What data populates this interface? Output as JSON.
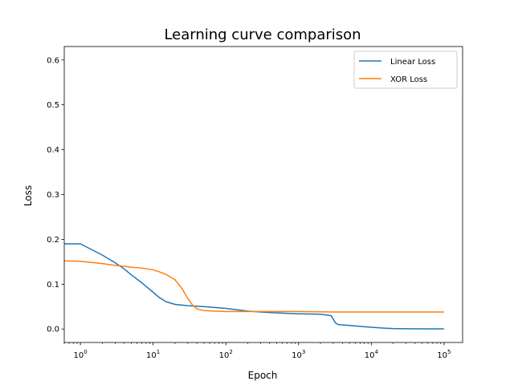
{
  "chart_data": {
    "type": "line",
    "title": "Learning curve comparison",
    "xlabel": "Epoch",
    "ylabel": "Loss",
    "xscale": "log",
    "xlim": [
      0.6,
      180000
    ],
    "ylim": [
      -0.03,
      0.63
    ],
    "xticks": [
      {
        "value": 1,
        "base": "10",
        "exp": "0"
      },
      {
        "value": 10,
        "base": "10",
        "exp": "1"
      },
      {
        "value": 100,
        "base": "10",
        "exp": "2"
      },
      {
        "value": 1000,
        "base": "10",
        "exp": "3"
      },
      {
        "value": 10000,
        "base": "10",
        "exp": "4"
      },
      {
        "value": 100000,
        "base": "10",
        "exp": "5"
      }
    ],
    "yticks": [
      {
        "value": 0.0,
        "label": "0.0"
      },
      {
        "value": 0.1,
        "label": "0.1"
      },
      {
        "value": 0.2,
        "label": "0.2"
      },
      {
        "value": 0.3,
        "label": "0.3"
      },
      {
        "value": 0.4,
        "label": "0.4"
      },
      {
        "value": 0.5,
        "label": "0.5"
      },
      {
        "value": 0.6,
        "label": "0.6"
      }
    ],
    "grid": false,
    "legend_position": "top-right",
    "series": [
      {
        "name": "Linear Loss",
        "color": "#1f77b4",
        "x": [
          0.6,
          1,
          2,
          3,
          4,
          5,
          7,
          10,
          12,
          15,
          20,
          30,
          50,
          100,
          200,
          300,
          500,
          1000,
          2000,
          2800,
          3000,
          3200,
          3500,
          5000,
          7000,
          10000,
          15000,
          20000,
          50000,
          100000
        ],
        "y": [
          0.19,
          0.19,
          0.165,
          0.148,
          0.134,
          0.121,
          0.103,
          0.082,
          0.071,
          0.061,
          0.055,
          0.052,
          0.05,
          0.046,
          0.04,
          0.038,
          0.036,
          0.034,
          0.033,
          0.03,
          0.022,
          0.014,
          0.01,
          0.008,
          0.006,
          0.004,
          0.002,
          0.001,
          0.0005,
          0.0004
        ]
      },
      {
        "name": "XOR Loss",
        "color": "#ff7f0e",
        "x": [
          0.6,
          1,
          2,
          3,
          4,
          5,
          7,
          10,
          12,
          15,
          20,
          25,
          30,
          35,
          40,
          50,
          70,
          100,
          200,
          500,
          1000,
          3000,
          10000,
          100000
        ],
        "y": [
          0.152,
          0.151,
          0.146,
          0.142,
          0.14,
          0.138,
          0.136,
          0.132,
          0.128,
          0.122,
          0.11,
          0.09,
          0.068,
          0.053,
          0.045,
          0.041,
          0.04,
          0.039,
          0.039,
          0.039,
          0.039,
          0.038,
          0.038,
          0.038
        ]
      }
    ]
  }
}
